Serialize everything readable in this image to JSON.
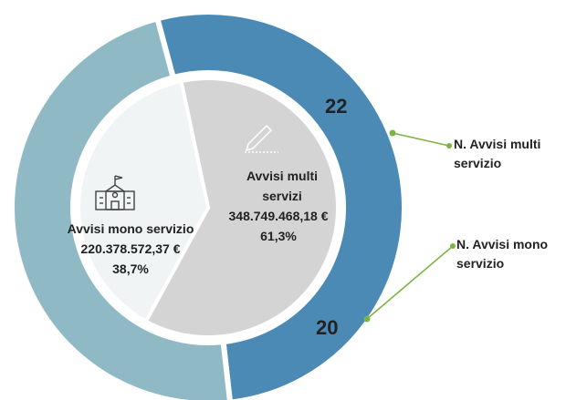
{
  "chart_data": [
    {
      "type": "donut",
      "categories": [
        "N. Avvisi multi servizio",
        "N. Avvisi mono servizio"
      ],
      "values": [
        22,
        20
      ],
      "colors": [
        "#4a8ab5",
        "#8fb9c4"
      ]
    },
    {
      "type": "pie",
      "categories": [
        "Avvisi multi servizi",
        "Avvisi mono servizio"
      ],
      "amount_labels": [
        "348.749.468,18 €",
        "220.378.572,37 €"
      ],
      "values": [
        61.3,
        38.7
      ],
      "value_labels": [
        "61,3%",
        "38,7%"
      ],
      "colors": [
        "#d4d4d4",
        "#f0f4f5"
      ]
    }
  ]
}
